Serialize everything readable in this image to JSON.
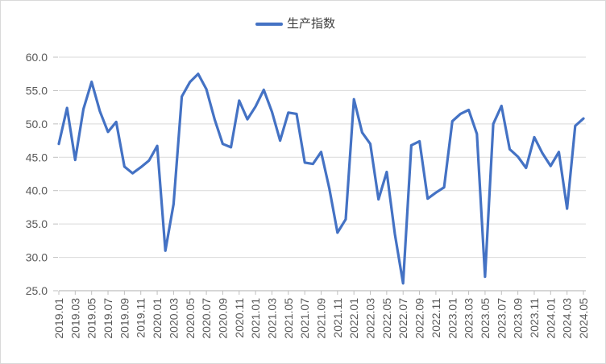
{
  "colors": {
    "series_blue": "#4472C4",
    "gridline": "#D9D9D9",
    "axis_line": "#BFBFBF",
    "tick_label": "#595959",
    "legend_text": "#404040",
    "background": "#FFFFFF"
  },
  "legend": {
    "series_label": "生产指数"
  },
  "chart_data": {
    "type": "line",
    "title": "",
    "xlabel": "",
    "ylabel": "",
    "grid": true,
    "legend_position": "top-center",
    "ylim": [
      25.0,
      60.0
    ],
    "y_tick_step": 5.0,
    "y_tick_labels": [
      "60.0",
      "55.0",
      "50.0",
      "45.0",
      "40.0",
      "35.0",
      "30.0",
      "25.0"
    ],
    "x_label_interval": 2,
    "categories": [
      "2019.01",
      "2019.02",
      "2019.03",
      "2019.04",
      "2019.05",
      "2019.06",
      "2019.07",
      "2019.08",
      "2019.09",
      "2019.10",
      "2019.11",
      "2019.12",
      "2020.01",
      "2020.02",
      "2020.03",
      "2020.04",
      "2020.05",
      "2020.06",
      "2020.07",
      "2020.08",
      "2020.09",
      "2020.10",
      "2020.11",
      "2020.12",
      "2021.01",
      "2021.02",
      "2021.03",
      "2021.04",
      "2021.05",
      "2021.06",
      "2021.07",
      "2021.08",
      "2021.09",
      "2021.10",
      "2021.11",
      "2021.12",
      "2022.01",
      "2022.02",
      "2022.03",
      "2022.04",
      "2022.05",
      "2022.06",
      "2022.07",
      "2022.08",
      "2022.09",
      "2022.10",
      "2022.11",
      "2022.12",
      "2023.01",
      "2023.02",
      "2023.03",
      "2023.04",
      "2023.05",
      "2023.06",
      "2023.07",
      "2023.08",
      "2023.09",
      "2023.10",
      "2023.11",
      "2023.12",
      "2024.01",
      "2024.02",
      "2024.03",
      "2024.04",
      "2024.05"
    ],
    "series": [
      {
        "name": "生产指数",
        "color": "#4472C4",
        "values": [
          47.0,
          52.4,
          44.6,
          52.2,
          56.3,
          51.9,
          48.8,
          50.3,
          43.6,
          42.6,
          43.5,
          44.5,
          46.7,
          31.0,
          38.0,
          54.1,
          56.3,
          57.5,
          55.2,
          50.7,
          47.0,
          46.5,
          53.5,
          50.7,
          52.6,
          55.1,
          51.8,
          47.5,
          51.7,
          51.5,
          44.2,
          44.0,
          45.8,
          40.3,
          33.7,
          35.7,
          53.7,
          48.7,
          47.0,
          38.7,
          42.8,
          33.5,
          26.1,
          46.8,
          47.4,
          38.8,
          39.7,
          40.5,
          50.4,
          51.5,
          52.1,
          48.5,
          27.1,
          50.0,
          52.7,
          46.2,
          45.1,
          43.4,
          48.0,
          45.6,
          43.7,
          45.8,
          37.3,
          49.7,
          50.8
        ]
      }
    ]
  }
}
